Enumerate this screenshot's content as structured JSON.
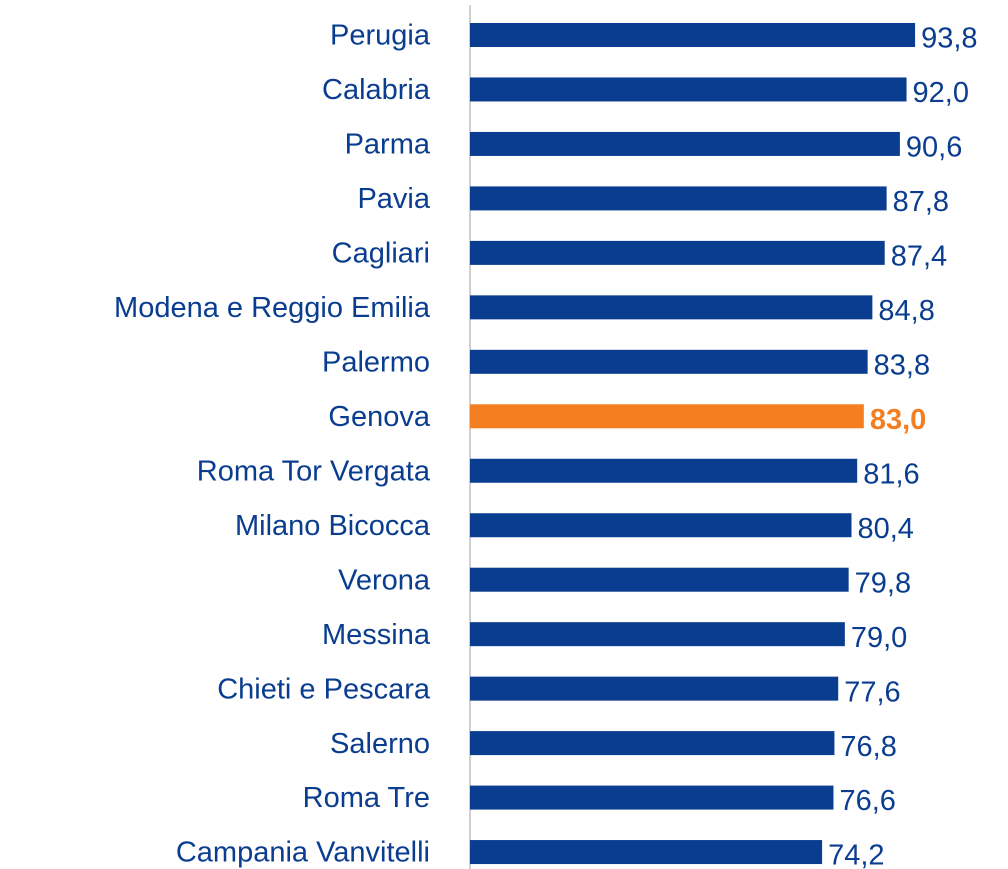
{
  "chart_data": {
    "type": "barh",
    "categories": [
      "Perugia",
      "Calabria",
      "Parma",
      "Pavia",
      "Cagliari",
      "Modena e Reggio Emilia",
      "Palermo",
      "Genova",
      "Roma Tor Vergata",
      "Milano Bicocca",
      "Verona",
      "Messina",
      "Chieti e Pescara",
      "Salerno",
      "Roma Tre",
      "Campania Vanvitelli"
    ],
    "values": [
      93.8,
      92.0,
      90.6,
      87.8,
      87.4,
      84.8,
      83.8,
      83.0,
      81.6,
      80.4,
      79.8,
      79.0,
      77.6,
      76.8,
      76.6,
      74.2
    ],
    "value_labels": [
      "93,8",
      "92,0",
      "90,6",
      "87,8",
      "87,4",
      "84,8",
      "83,8",
      "83,0",
      "81,6",
      "80,4",
      "79,8",
      "79,0",
      "77,6",
      "76,8",
      "76,6",
      "74,2"
    ],
    "color": "#0a3d8f",
    "colors": [
      "#0a3d8f",
      "#0a3d8f",
      "#0a3d8f",
      "#0a3d8f",
      "#0a3d8f",
      "#0a3d8f",
      "#0a3d8f",
      "#f47f22",
      "#0a3d8f",
      "#0a3d8f",
      "#0a3d8f",
      "#0a3d8f",
      "#0a3d8f",
      "#0a3d8f",
      "#0a3d8f",
      "#0a3d8f"
    ],
    "xlim": [
      0,
      100
    ]
  }
}
